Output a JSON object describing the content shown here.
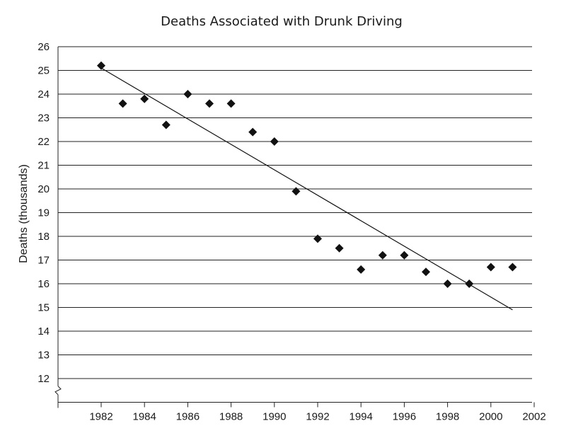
{
  "chart_data": {
    "type": "scatter",
    "title": "Deaths Associated with Drunk Driving",
    "xlabel": "",
    "ylabel": "Deaths (thousands)",
    "xlim": [
      1980,
      2002
    ],
    "ylim": [
      11,
      26
    ],
    "x_ticks": [
      1982,
      1984,
      1986,
      1988,
      1990,
      1992,
      1994,
      1996,
      1998,
      2000,
      2002
    ],
    "y_ticks": [
      12,
      13,
      14,
      15,
      16,
      17,
      18,
      19,
      20,
      21,
      22,
      23,
      24,
      25,
      26
    ],
    "y_axis_break": true,
    "grid": "horizontal",
    "marker": "diamond",
    "color": "#111111",
    "points": [
      {
        "x": 1982,
        "y": 25.2
      },
      {
        "x": 1983,
        "y": 23.6
      },
      {
        "x": 1984,
        "y": 23.8
      },
      {
        "x": 1985,
        "y": 22.7
      },
      {
        "x": 1986,
        "y": 24.0
      },
      {
        "x": 1987,
        "y": 23.6
      },
      {
        "x": 1988,
        "y": 23.6
      },
      {
        "x": 1989,
        "y": 22.4
      },
      {
        "x": 1990,
        "y": 22.0
      },
      {
        "x": 1991,
        "y": 19.9
      },
      {
        "x": 1992,
        "y": 17.9
      },
      {
        "x": 1993,
        "y": 17.5
      },
      {
        "x": 1994,
        "y": 16.6
      },
      {
        "x": 1995,
        "y": 17.2
      },
      {
        "x": 1996,
        "y": 17.2
      },
      {
        "x": 1997,
        "y": 16.5
      },
      {
        "x": 1998,
        "y": 16.0
      },
      {
        "x": 1999,
        "y": 16.0
      },
      {
        "x": 2000,
        "y": 16.7
      },
      {
        "x": 2001,
        "y": 16.7
      }
    ],
    "trend_line": {
      "x1": 1982,
      "y1": 25.1,
      "x2": 2001,
      "y2": 14.9
    }
  }
}
